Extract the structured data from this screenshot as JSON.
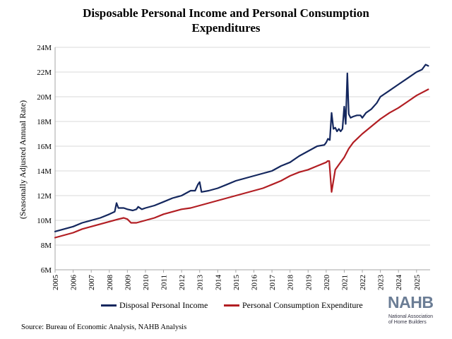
{
  "title_line1": "Disposable Personal Income and Personal Consumption",
  "title_line2": "Expenditures",
  "source": "Source: Bureau of Economic Analysis, NAHB Analysis",
  "logo": {
    "mark": "NAHB",
    "sub_line1": "National Association",
    "sub_line2": "of Home Builders"
  },
  "colors": {
    "income": "#14275e",
    "consumption": "#b21e23",
    "grid": "#d9d9d9"
  },
  "chart_data": {
    "type": "line",
    "title": "Disposable Personal Income and Personal Consumption Expenditures",
    "ylabel": "(Seasonally Adjusted Annual Rate)",
    "ylim": [
      6,
      24
    ],
    "yticks": [
      6,
      8,
      10,
      12,
      14,
      16,
      18,
      20,
      22,
      24
    ],
    "ytick_labels": [
      "6M",
      "8M",
      "10M",
      "12M",
      "14M",
      "16M",
      "18M",
      "20M",
      "22M",
      "24M"
    ],
    "xlim": [
      2005,
      2025.75
    ],
    "xticks": [
      2005,
      2006,
      2007,
      2008,
      2009,
      2010,
      2011,
      2012,
      2013,
      2014,
      2015,
      2016,
      2017,
      2018,
      2019,
      2020,
      2021,
      2022,
      2023,
      2024,
      2025
    ],
    "xtick_labels": [
      "2005",
      "2006",
      "2007",
      "2008",
      "2009",
      "2010",
      "2011",
      "2012",
      "2013",
      "2014",
      "2015",
      "2016",
      "2017",
      "2018",
      "2019",
      "2020",
      "2021",
      "2022",
      "2023",
      "2024",
      "2025"
    ],
    "grid": "horizontal",
    "legend_position": "bottom",
    "series": [
      {
        "name": "Disposal Personal Income",
        "color": "#14275e",
        "x": [
          2005.0,
          2005.5,
          2006.0,
          2006.5,
          2007.0,
          2007.5,
          2008.0,
          2008.3,
          2008.4,
          2008.5,
          2008.8,
          2009.0,
          2009.3,
          2009.5,
          2009.6,
          2009.8,
          2010.0,
          2010.5,
          2011.0,
          2011.5,
          2012.0,
          2012.5,
          2012.75,
          2012.9,
          2013.0,
          2013.1,
          2013.5,
          2014.0,
          2014.5,
          2015.0,
          2015.5,
          2016.0,
          2016.5,
          2017.0,
          2017.5,
          2018.0,
          2018.5,
          2019.0,
          2019.5,
          2019.9,
          2020.0,
          2020.1,
          2020.2,
          2020.3,
          2020.4,
          2020.5,
          2020.6,
          2020.7,
          2020.8,
          2020.9,
          2021.0,
          2021.08,
          2021.17,
          2021.25,
          2021.35,
          2021.5,
          2021.7,
          2021.9,
          2022.0,
          2022.2,
          2022.5,
          2022.8,
          2023.0,
          2023.5,
          2024.0,
          2024.5,
          2025.0,
          2025.3,
          2025.5,
          2025.65
        ],
        "values": [
          9.1,
          9.3,
          9.5,
          9.8,
          10.0,
          10.2,
          10.5,
          10.7,
          11.4,
          11.0,
          11.0,
          10.9,
          10.8,
          10.9,
          11.1,
          10.9,
          11.0,
          11.2,
          11.5,
          11.8,
          12.0,
          12.4,
          12.4,
          12.9,
          13.1,
          12.3,
          12.4,
          12.6,
          12.9,
          13.2,
          13.4,
          13.6,
          13.8,
          14.0,
          14.4,
          14.7,
          15.2,
          15.6,
          16.0,
          16.1,
          16.3,
          16.6,
          16.5,
          18.7,
          17.4,
          17.5,
          17.2,
          17.4,
          17.2,
          17.4,
          19.2,
          17.8,
          21.9,
          18.6,
          18.3,
          18.4,
          18.5,
          18.5,
          18.3,
          18.7,
          19.0,
          19.5,
          20.0,
          20.5,
          21.0,
          21.5,
          22.0,
          22.2,
          22.6,
          22.5
        ]
      },
      {
        "name": "Personal Consumption Expenditure",
        "color": "#b21e23",
        "x": [
          2005.0,
          2005.5,
          2006.0,
          2006.5,
          2007.0,
          2007.5,
          2008.0,
          2008.5,
          2008.8,
          2009.0,
          2009.2,
          2009.5,
          2010.0,
          2010.5,
          2011.0,
          2011.5,
          2012.0,
          2012.5,
          2013.0,
          2013.5,
          2014.0,
          2014.5,
          2015.0,
          2015.5,
          2016.0,
          2016.5,
          2017.0,
          2017.5,
          2018.0,
          2018.5,
          2019.0,
          2019.5,
          2020.0,
          2020.08,
          2020.17,
          2020.3,
          2020.5,
          2020.75,
          2021.0,
          2021.25,
          2021.5,
          2022.0,
          2022.5,
          2023.0,
          2023.5,
          2024.0,
          2024.5,
          2025.0,
          2025.65
        ],
        "values": [
          8.6,
          8.8,
          9.0,
          9.3,
          9.5,
          9.7,
          9.9,
          10.1,
          10.2,
          10.1,
          9.8,
          9.8,
          10.0,
          10.2,
          10.5,
          10.7,
          10.9,
          11.0,
          11.2,
          11.4,
          11.6,
          11.8,
          12.0,
          12.2,
          12.4,
          12.6,
          12.9,
          13.2,
          13.6,
          13.9,
          14.1,
          14.4,
          14.7,
          14.8,
          14.8,
          12.3,
          14.1,
          14.6,
          15.1,
          15.8,
          16.3,
          17.0,
          17.6,
          18.2,
          18.7,
          19.1,
          19.6,
          20.1,
          20.6
        ]
      }
    ]
  }
}
